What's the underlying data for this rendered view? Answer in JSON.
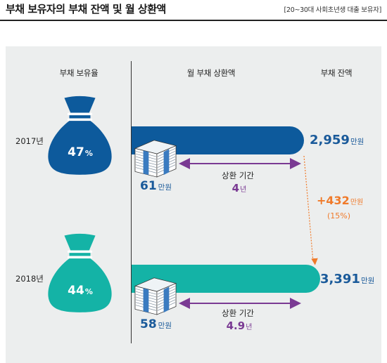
{
  "title": "부채 보유자의 부채 잔액 및 월 상환액",
  "subtitle": "[20~30대 사회초년생 대출 보유자]",
  "columns": {
    "ratio": "부채 보유율",
    "payment": "월 부채 상환액",
    "balance": "부채 잔액"
  },
  "rows": [
    {
      "year": "2017년",
      "ratio_value": "47",
      "ratio_unit": "%",
      "payment_value": "61",
      "payment_unit": "만원",
      "period_label": "상환 기간",
      "period_value": "4",
      "period_unit": "년",
      "balance_value": "2,959",
      "balance_unit": "만원"
    },
    {
      "year": "2018년",
      "ratio_value": "44",
      "ratio_unit": "%",
      "payment_value": "58",
      "payment_unit": "만원",
      "period_label": "상환 기간",
      "period_value": "4.9",
      "period_unit": "년",
      "balance_value": "3,391",
      "balance_unit": "만원"
    }
  ],
  "change": {
    "value": "+432",
    "unit": "만원",
    "percent": "(15%)"
  },
  "colors": {
    "y2017": "#0d5a9c",
    "y2018": "#14b3a6",
    "purple": "#7a3a93",
    "orange": "#f07a2a",
    "bg": "#eceeee"
  },
  "chart_data": {
    "type": "bar",
    "categories": [
      "2017년",
      "2018년"
    ],
    "series": [
      {
        "name": "부채 잔액",
        "values": [
          2959,
          3391
        ]
      },
      {
        "name": "부채 보유율",
        "values": [
          47,
          44
        ]
      },
      {
        "name": "월 부채 상환액",
        "values": [
          61,
          58
        ]
      },
      {
        "name": "상환 기간",
        "values": [
          4,
          4.9
        ]
      }
    ],
    "title": "부채 보유자의 부채 잔액 및 월 상환액",
    "xlabel": "",
    "ylabel": ""
  }
}
